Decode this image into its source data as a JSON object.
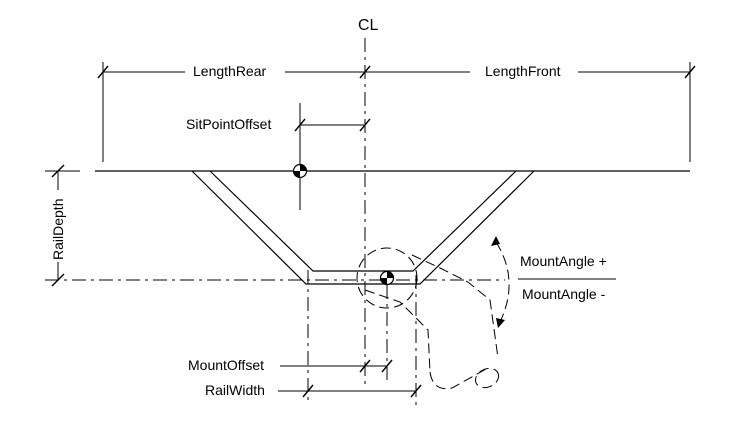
{
  "labels": {
    "centerline": "CL",
    "length_rear": "LengthRear",
    "length_front": "LengthFront",
    "sit_point_offset": "SitPointOffset",
    "rail_depth": "RailDepth",
    "mount_angle_plus": "MountAngle +",
    "mount_angle_minus": "MountAngle -",
    "mount_offset": "MountOffset",
    "rail_width": "RailWidth"
  }
}
